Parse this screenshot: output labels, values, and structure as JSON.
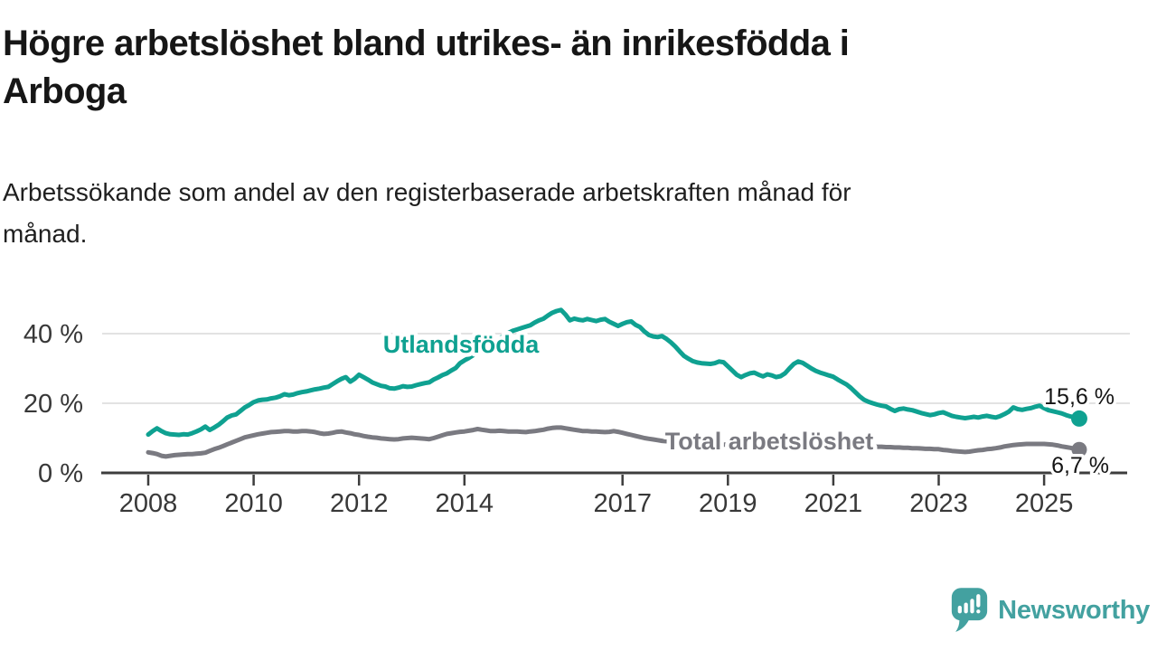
{
  "header": {
    "title_line1": "Högre arbetslöshet bland utrikes- än inrikesfödda i",
    "title_line2": "Arboga",
    "subtitle_line1": "Arbetssökande som andel av den registerbaserade arbetskraften månad för",
    "subtitle_line2": "månad."
  },
  "footer": {
    "brand": "Newsworthy",
    "brand_color": "#43a1a0"
  },
  "chart_data": {
    "type": "line",
    "title": "Högre arbetslöshet bland utrikes- än inrikesfödda i Arboga",
    "subtitle": "Arbetssökande som andel av den registerbaserade arbetskraften månad för månad.",
    "xlabel": "",
    "ylabel": "",
    "x_axis": {
      "tick_years": [
        2008,
        2010,
        2012,
        2014,
        2017,
        2019,
        2021,
        2023,
        2025
      ],
      "range": [
        2008,
        2025.67
      ]
    },
    "y_axis": {
      "ticks": [
        {
          "value": 0,
          "label": "0 %"
        },
        {
          "value": 20,
          "label": "20 %"
        },
        {
          "value": 40,
          "label": "40 %"
        }
      ],
      "gridline_values": [
        20,
        40
      ],
      "range": [
        0,
        48
      ]
    },
    "grid": "horizontal-only",
    "legend_position": "inline-labels",
    "axis_color": "#3d3d3d",
    "grid_color": "#d9d9d9",
    "tick_label_color": "#383838",
    "end_label_color": "#141414",
    "series": [
      {
        "name": "Utlandsfödda",
        "color": "#0fa191",
        "end_label": "15,6 %",
        "final_value": 15.6,
        "start_year": 2008,
        "points_per_year": 12,
        "values": [
          11.0,
          12.0,
          12.8,
          12.0,
          11.4,
          11.1,
          11.0,
          10.9,
          11.1,
          11.0,
          11.4,
          11.9,
          12.5,
          13.3,
          12.3,
          13.0,
          13.8,
          14.8,
          15.9,
          16.5,
          16.8,
          17.8,
          18.8,
          19.5,
          20.3,
          20.8,
          21.0,
          21.1,
          21.4,
          21.6,
          22.0,
          22.6,
          22.3,
          22.5,
          22.9,
          23.2,
          23.4,
          23.7,
          24.0,
          24.2,
          24.5,
          24.7,
          25.5,
          26.3,
          27.0,
          27.5,
          26.2,
          27.0,
          28.2,
          27.5,
          26.8,
          26.0,
          25.5,
          25.0,
          24.8,
          24.3,
          24.2,
          24.5,
          24.9,
          24.7,
          24.8,
          25.2,
          25.5,
          25.8,
          26.0,
          26.8,
          27.4,
          28.1,
          28.6,
          29.4,
          30.1,
          31.5,
          32.3,
          33.0,
          33.8,
          34.6,
          35.4,
          36.2,
          37.0,
          37.8,
          38.6,
          39.4,
          40.2,
          40.8,
          41.2,
          41.6,
          42.0,
          42.4,
          43.2,
          43.8,
          44.3,
          45.2,
          46.0,
          46.5,
          46.8,
          45.5,
          43.8,
          44.3,
          44.0,
          43.8,
          44.2,
          43.9,
          43.6,
          44.0,
          44.2,
          43.4,
          42.8,
          42.2,
          42.8,
          43.3,
          43.5,
          42.5,
          41.9,
          40.6,
          39.6,
          39.2,
          39.0,
          39.3,
          38.5,
          37.5,
          36.3,
          34.9,
          33.6,
          32.8,
          32.1,
          31.7,
          31.5,
          31.4,
          31.3,
          31.5,
          32.0,
          31.8,
          30.6,
          29.4,
          28.2,
          27.5,
          28.1,
          28.6,
          28.8,
          28.2,
          27.7,
          28.3,
          28.0,
          27.5,
          27.8,
          28.6,
          30.0,
          31.3,
          32.0,
          31.6,
          30.8,
          30.0,
          29.3,
          28.8,
          28.4,
          28.0,
          27.6,
          26.8,
          26.1,
          25.4,
          24.4,
          23.2,
          22.0,
          21.0,
          20.4,
          20.0,
          19.6,
          19.3,
          19.1,
          18.4,
          17.8,
          18.3,
          18.5,
          18.2,
          18.0,
          17.6,
          17.2,
          16.9,
          16.6,
          16.8,
          17.2,
          17.4,
          16.9,
          16.4,
          16.1,
          15.9,
          15.7,
          15.9,
          16.1,
          15.9,
          16.2,
          16.4,
          16.1,
          15.9,
          16.3,
          16.9,
          17.6,
          18.8,
          18.3,
          18.1,
          18.4,
          18.6,
          19.0,
          19.3,
          18.6,
          18.0,
          17.7,
          17.4,
          17.1,
          16.6,
          16.2,
          15.9,
          15.6
        ]
      },
      {
        "name": "Total arbetslöshet",
        "color": "#7a7a81",
        "end_label": "6,7 %",
        "final_value": 6.7,
        "start_year": 2008,
        "points_per_year": 12,
        "values": [
          5.9,
          5.7,
          5.4,
          4.9,
          4.7,
          4.9,
          5.1,
          5.2,
          5.3,
          5.4,
          5.4,
          5.5,
          5.6,
          5.8,
          6.3,
          6.8,
          7.2,
          7.7,
          8.2,
          8.7,
          9.2,
          9.7,
          10.2,
          10.5,
          10.8,
          11.1,
          11.3,
          11.5,
          11.7,
          11.8,
          11.9,
          12.0,
          12.0,
          11.9,
          11.9,
          12.0,
          12.0,
          11.9,
          11.7,
          11.4,
          11.2,
          11.3,
          11.5,
          11.8,
          11.9,
          11.6,
          11.4,
          11.1,
          10.9,
          10.6,
          10.4,
          10.2,
          10.1,
          9.9,
          9.8,
          9.7,
          9.6,
          9.7,
          9.9,
          10.0,
          10.1,
          10.0,
          9.9,
          9.8,
          9.7,
          10.0,
          10.4,
          10.8,
          11.2,
          11.4,
          11.6,
          11.8,
          11.9,
          12.1,
          12.3,
          12.6,
          12.4,
          12.2,
          12.0,
          12.0,
          12.1,
          12.0,
          11.9,
          11.9,
          11.9,
          11.8,
          11.7,
          11.9,
          12.0,
          12.2,
          12.4,
          12.7,
          12.9,
          13.0,
          13.0,
          12.8,
          12.6,
          12.4,
          12.2,
          12.0,
          12.0,
          11.9,
          11.9,
          11.8,
          11.7,
          11.8,
          12.0,
          11.8,
          11.5,
          11.2,
          10.9,
          10.6,
          10.3,
          10.0,
          9.8,
          9.6,
          9.4,
          9.2,
          9.1,
          9.0,
          8.9,
          8.8,
          8.7,
          8.6,
          8.5,
          8.4,
          8.4,
          8.3,
          8.3,
          8.2,
          8.2,
          8.1,
          8.1,
          8.0,
          8.0,
          7.9,
          7.9,
          7.8,
          7.8,
          7.9,
          7.9,
          8.0,
          8.0,
          8.1,
          8.2,
          8.4,
          8.7,
          8.9,
          8.9,
          8.8,
          8.7,
          8.6,
          8.5,
          8.4,
          8.3,
          8.2,
          8.1,
          8.0,
          7.9,
          7.9,
          7.8,
          7.8,
          7.7,
          7.7,
          7.6,
          7.6,
          7.5,
          7.5,
          7.4,
          7.4,
          7.3,
          7.3,
          7.2,
          7.2,
          7.1,
          7.1,
          7.0,
          6.9,
          6.9,
          6.8,
          6.8,
          6.6,
          6.5,
          6.3,
          6.2,
          6.1,
          6.0,
          6.1,
          6.3,
          6.5,
          6.6,
          6.8,
          6.9,
          7.1,
          7.3,
          7.6,
          7.8,
          8.0,
          8.1,
          8.2,
          8.3,
          8.3,
          8.3,
          8.3,
          8.3,
          8.2,
          8.1,
          7.9,
          7.6,
          7.4,
          7.2,
          6.9,
          6.7
        ]
      }
    ]
  }
}
